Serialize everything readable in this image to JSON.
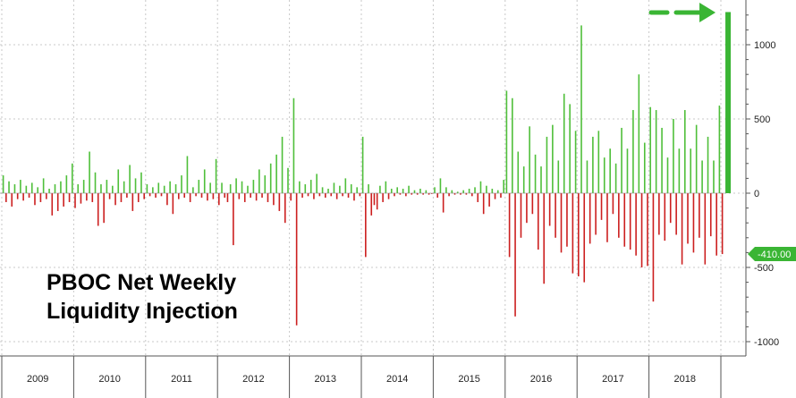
{
  "chart_data": {
    "type": "bar",
    "title_lines": [
      "PBOC Net Weekly",
      "Liquidity Injection"
    ],
    "xlabel": "",
    "ylabel": "",
    "ylim": [
      -1000,
      1300
    ],
    "y_ticks": [
      -1000,
      -500,
      0,
      500,
      1000
    ],
    "x_years": [
      "2009",
      "2010",
      "2011",
      "2012",
      "2013",
      "2014",
      "2015",
      "2016",
      "2017",
      "2018"
    ],
    "last_value_label": "-410.00",
    "grid": true,
    "colors": {
      "positive": "#4fbf3a",
      "negative": "#cc1f1f",
      "highlight": "#3ab534",
      "last_label_bg": "#3ab534"
    },
    "series": [
      {
        "name": "",
        "points": [
          [
            2009.02,
            120
          ],
          [
            2009.06,
            -60
          ],
          [
            2009.1,
            80
          ],
          [
            2009.14,
            -90
          ],
          [
            2009.18,
            60
          ],
          [
            2009.22,
            -40
          ],
          [
            2009.26,
            90
          ],
          [
            2009.3,
            -50
          ],
          [
            2009.34,
            50
          ],
          [
            2009.38,
            -30
          ],
          [
            2009.42,
            70
          ],
          [
            2009.46,
            -80
          ],
          [
            2009.5,
            40
          ],
          [
            2009.54,
            -60
          ],
          [
            2009.58,
            100
          ],
          [
            2009.62,
            -40
          ],
          [
            2009.66,
            30
          ],
          [
            2009.7,
            -150
          ],
          [
            2009.74,
            60
          ],
          [
            2009.78,
            -120
          ],
          [
            2009.82,
            80
          ],
          [
            2009.86,
            -90
          ],
          [
            2009.9,
            120
          ],
          [
            2009.94,
            -60
          ],
          [
            2009.98,
            200
          ],
          [
            2010.02,
            -100
          ],
          [
            2010.06,
            60
          ],
          [
            2010.1,
            -70
          ],
          [
            2010.14,
            90
          ],
          [
            2010.18,
            -50
          ],
          [
            2010.22,
            280
          ],
          [
            2010.26,
            -60
          ],
          [
            2010.3,
            140
          ],
          [
            2010.34,
            -220
          ],
          [
            2010.38,
            60
          ],
          [
            2010.42,
            -200
          ],
          [
            2010.46,
            90
          ],
          [
            2010.5,
            -40
          ],
          [
            2010.54,
            50
          ],
          [
            2010.58,
            -80
          ],
          [
            2010.62,
            160
          ],
          [
            2010.66,
            -60
          ],
          [
            2010.7,
            80
          ],
          [
            2010.74,
            -30
          ],
          [
            2010.78,
            190
          ],
          [
            2010.82,
            -120
          ],
          [
            2010.86,
            100
          ],
          [
            2010.9,
            -60
          ],
          [
            2010.94,
            140
          ],
          [
            2010.98,
            -40
          ],
          [
            2011.02,
            60
          ],
          [
            2011.06,
            -20
          ],
          [
            2011.1,
            40
          ],
          [
            2011.14,
            -30
          ],
          [
            2011.18,
            70
          ],
          [
            2011.22,
            -20
          ],
          [
            2011.26,
            50
          ],
          [
            2011.3,
            -80
          ],
          [
            2011.34,
            80
          ],
          [
            2011.38,
            -140
          ],
          [
            2011.42,
            60
          ],
          [
            2011.46,
            -40
          ],
          [
            2011.5,
            120
          ],
          [
            2011.54,
            -30
          ],
          [
            2011.58,
            250
          ],
          [
            2011.62,
            -60
          ],
          [
            2011.66,
            40
          ],
          [
            2011.7,
            -20
          ],
          [
            2011.74,
            90
          ],
          [
            2011.78,
            -30
          ],
          [
            2011.82,
            160
          ],
          [
            2011.86,
            -50
          ],
          [
            2011.9,
            70
          ],
          [
            2011.94,
            -40
          ],
          [
            2011.98,
            230
          ],
          [
            2012.02,
            -80
          ],
          [
            2012.06,
            70
          ],
          [
            2012.1,
            -30
          ],
          [
            2012.14,
            -60
          ],
          [
            2012.18,
            60
          ],
          [
            2012.22,
            -350
          ],
          [
            2012.26,
            100
          ],
          [
            2012.3,
            -40
          ],
          [
            2012.34,
            80
          ],
          [
            2012.38,
            -60
          ],
          [
            2012.42,
            50
          ],
          [
            2012.46,
            -30
          ],
          [
            2012.5,
            90
          ],
          [
            2012.54,
            -50
          ],
          [
            2012.58,
            160
          ],
          [
            2012.62,
            -30
          ],
          [
            2012.66,
            120
          ],
          [
            2012.7,
            -60
          ],
          [
            2012.74,
            200
          ],
          [
            2012.78,
            -80
          ],
          [
            2012.82,
            260
          ],
          [
            2012.86,
            -120
          ],
          [
            2012.9,
            380
          ],
          [
            2012.94,
            -200
          ],
          [
            2012.98,
            170
          ],
          [
            2013.02,
            -50
          ],
          [
            2013.06,
            640
          ],
          [
            2013.1,
            -890
          ],
          [
            2013.14,
            80
          ],
          [
            2013.18,
            -30
          ],
          [
            2013.22,
            60
          ],
          [
            2013.26,
            -20
          ],
          [
            2013.3,
            90
          ],
          [
            2013.34,
            -40
          ],
          [
            2013.38,
            130
          ],
          [
            2013.42,
            -20
          ],
          [
            2013.46,
            40
          ],
          [
            2013.5,
            -30
          ],
          [
            2013.54,
            30
          ],
          [
            2013.58,
            -20
          ],
          [
            2013.62,
            70
          ],
          [
            2013.66,
            -40
          ],
          [
            2013.7,
            50
          ],
          [
            2013.74,
            -20
          ],
          [
            2013.78,
            100
          ],
          [
            2013.82,
            -30
          ],
          [
            2013.86,
            60
          ],
          [
            2013.9,
            -50
          ],
          [
            2013.94,
            40
          ],
          [
            2013.98,
            -20
          ],
          [
            2014.02,
            380
          ],
          [
            2014.06,
            -430
          ],
          [
            2014.1,
            60
          ],
          [
            2014.14,
            -150
          ],
          [
            2014.18,
            -80
          ],
          [
            2014.22,
            -110
          ],
          [
            2014.26,
            50
          ],
          [
            2014.3,
            -60
          ],
          [
            2014.34,
            80
          ],
          [
            2014.38,
            -40
          ],
          [
            2014.42,
            30
          ],
          [
            2014.46,
            -20
          ],
          [
            2014.5,
            40
          ],
          [
            2014.54,
            -10
          ],
          [
            2014.58,
            30
          ],
          [
            2014.62,
            -20
          ],
          [
            2014.66,
            50
          ],
          [
            2014.7,
            -10
          ],
          [
            2014.74,
            20
          ],
          [
            2014.78,
            -10
          ],
          [
            2014.82,
            30
          ],
          [
            2014.86,
            -10
          ],
          [
            2014.9,
            20
          ],
          [
            2014.94,
            -10
          ],
          [
            2014.98,
            -5
          ],
          [
            2015.02,
            40
          ],
          [
            2015.06,
            -30
          ],
          [
            2015.1,
            100
          ],
          [
            2015.14,
            -130
          ],
          [
            2015.18,
            40
          ],
          [
            2015.22,
            -20
          ],
          [
            2015.26,
            20
          ],
          [
            2015.3,
            -10
          ],
          [
            2015.34,
            10
          ],
          [
            2015.38,
            -10
          ],
          [
            2015.42,
            20
          ],
          [
            2015.46,
            -10
          ],
          [
            2015.5,
            30
          ],
          [
            2015.54,
            -20
          ],
          [
            2015.58,
            40
          ],
          [
            2015.62,
            -60
          ],
          [
            2015.66,
            80
          ],
          [
            2015.7,
            -140
          ],
          [
            2015.74,
            50
          ],
          [
            2015.78,
            -90
          ],
          [
            2015.82,
            30
          ],
          [
            2015.86,
            -40
          ],
          [
            2015.9,
            20
          ],
          [
            2015.94,
            -30
          ],
          [
            2015.98,
            90
          ],
          [
            2016.02,
            690
          ],
          [
            2016.06,
            -430
          ],
          [
            2016.1,
            640
          ],
          [
            2016.14,
            -830
          ],
          [
            2016.18,
            280
          ],
          [
            2016.22,
            -300
          ],
          [
            2016.26,
            180
          ],
          [
            2016.3,
            -200
          ],
          [
            2016.34,
            450
          ],
          [
            2016.38,
            -140
          ],
          [
            2016.42,
            260
          ],
          [
            2016.46,
            -380
          ],
          [
            2016.5,
            180
          ],
          [
            2016.54,
            -610
          ],
          [
            2016.58,
            380
          ],
          [
            2016.62,
            -220
          ],
          [
            2016.66,
            460
          ],
          [
            2016.7,
            -300
          ],
          [
            2016.74,
            220
          ],
          [
            2016.78,
            -400
          ],
          [
            2016.82,
            670
          ],
          [
            2016.86,
            -360
          ],
          [
            2016.9,
            600
          ],
          [
            2016.94,
            -540
          ],
          [
            2016.98,
            420
          ],
          [
            2017.02,
            -560
          ],
          [
            2017.06,
            1130
          ],
          [
            2017.1,
            -600
          ],
          [
            2017.14,
            220
          ],
          [
            2017.18,
            -340
          ],
          [
            2017.22,
            380
          ],
          [
            2017.26,
            -280
          ],
          [
            2017.3,
            420
          ],
          [
            2017.34,
            -180
          ],
          [
            2017.38,
            240
          ],
          [
            2017.42,
            -330
          ],
          [
            2017.46,
            300
          ],
          [
            2017.5,
            -140
          ],
          [
            2017.54,
            200
          ],
          [
            2017.58,
            -300
          ],
          [
            2017.62,
            440
          ],
          [
            2017.66,
            -360
          ],
          [
            2017.7,
            300
          ],
          [
            2017.74,
            -380
          ],
          [
            2017.78,
            560
          ],
          [
            2017.82,
            -420
          ],
          [
            2017.86,
            800
          ],
          [
            2017.9,
            -500
          ],
          [
            2017.94,
            340
          ],
          [
            2017.98,
            -490
          ],
          [
            2018.02,
            580
          ],
          [
            2018.06,
            -730
          ],
          [
            2018.1,
            560
          ],
          [
            2018.14,
            -280
          ],
          [
            2018.18,
            440
          ],
          [
            2018.22,
            -320
          ],
          [
            2018.26,
            240
          ],
          [
            2018.3,
            -200
          ],
          [
            2018.34,
            500
          ],
          [
            2018.38,
            -280
          ],
          [
            2018.42,
            300
          ],
          [
            2018.46,
            -480
          ],
          [
            2018.5,
            560
          ],
          [
            2018.54,
            -340
          ],
          [
            2018.58,
            300
          ],
          [
            2018.62,
            -400
          ],
          [
            2018.66,
            460
          ],
          [
            2018.7,
            -300
          ],
          [
            2018.74,
            220
          ],
          [
            2018.78,
            -480
          ],
          [
            2018.82,
            380
          ],
          [
            2018.86,
            -290
          ],
          [
            2018.9,
            220
          ],
          [
            2018.94,
            -420
          ],
          [
            2018.98,
            590
          ],
          [
            2019.02,
            -410
          ]
        ]
      },
      {
        "name": "",
        "highlight": true,
        "points": [
          [
            2019.1,
            1220
          ]
        ]
      }
    ],
    "annotations": [
      {
        "type": "dashed-arrow",
        "target_x": 2019.1,
        "target_y": 1220,
        "color": "#3ab534"
      }
    ]
  }
}
